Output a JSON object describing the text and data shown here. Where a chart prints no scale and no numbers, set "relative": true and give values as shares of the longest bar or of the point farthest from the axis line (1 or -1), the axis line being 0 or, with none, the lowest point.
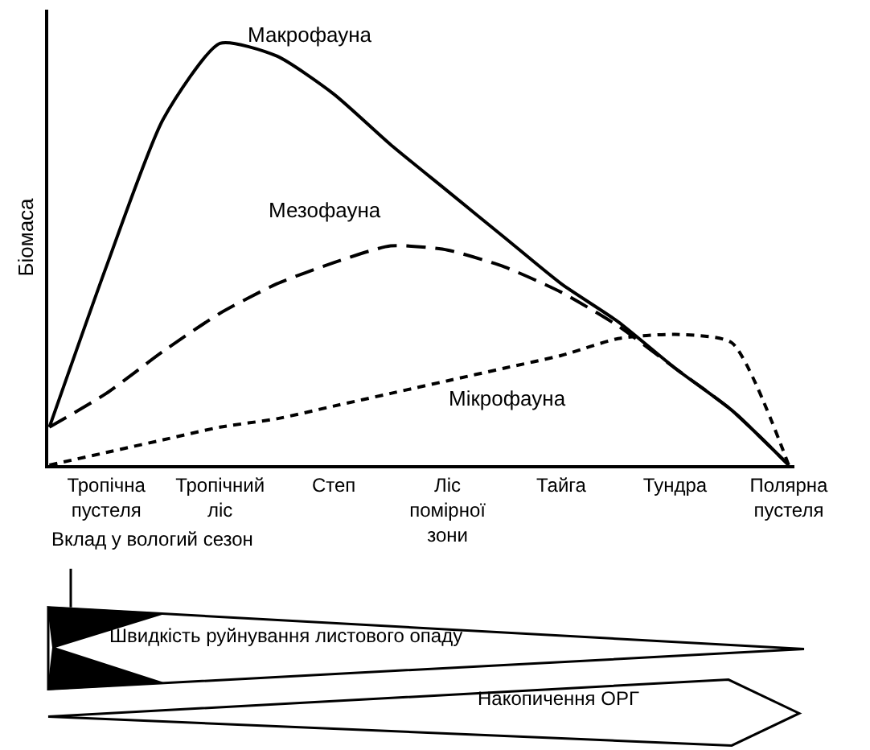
{
  "chart_data": {
    "type": "line",
    "relative": true,
    "ylabel": "Біомаса",
    "legend": false,
    "marker": "none",
    "categories": [
      null,
      "Тропічна\nпустеля",
      null,
      "Тропічний\nліс",
      null,
      "Степ",
      null,
      "Ліс\nпомірної\nзони",
      null,
      "Тайга",
      null,
      "Тундра",
      null,
      "Полярна\nпустеля"
    ],
    "series": [
      {
        "name": "Макрофауна",
        "color": "#000000",
        "line_style": "solid",
        "values": [
          0.09,
          0.47,
          0.82,
          1,
          0.97,
          0.88,
          0.76,
          0.65,
          0.54,
          0.43,
          0.34,
          0.23,
          0.13,
          0
        ]
      },
      {
        "name": "Мезофауна",
        "color": "#000000",
        "line_style": "dashed",
        "values": [
          0.09,
          0.17,
          0.27,
          0.36,
          0.43,
          0.48,
          0.52,
          0.51,
          0.47,
          0.41,
          0.33,
          0.23,
          0.13,
          0
        ]
      },
      {
        "name": "Мікрофауна",
        "color": "#000000",
        "line_style": "dotted",
        "values": [
          0,
          0.03,
          0.06,
          0.09,
          0.11,
          0.14,
          0.17,
          0.2,
          0.23,
          0.26,
          0.3,
          0.31,
          0.29,
          0
        ]
      }
    ],
    "annotations": [
      "Вклад у вологий сезон",
      "Швидкість руйнування листового опаду",
      "Накопичення ОРГ"
    ]
  }
}
